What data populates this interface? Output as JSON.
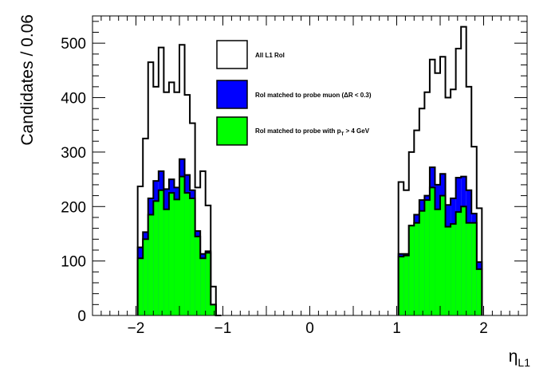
{
  "chart_data": {
    "type": "bar",
    "ylabel": "Candidates / 0.06",
    "xlabel_main": "η",
    "xlabel_sub": "L1",
    "xlim": [
      -2.5,
      2.5
    ],
    "ylim": [
      0,
      550
    ],
    "x_ticks": [
      -2,
      -1,
      0,
      1,
      2
    ],
    "x_tick_labels": [
      "−2",
      "−1",
      "0",
      "1",
      "2"
    ],
    "y_ticks": [
      0,
      100,
      200,
      300,
      400,
      500
    ],
    "y_tick_labels": [
      "0",
      "100",
      "200",
      "300",
      "400",
      "500"
    ],
    "bin_width": 0.06,
    "grid": false,
    "legend_position": "top-center",
    "colors": {
      "all": "#ffffff",
      "probe_muon": "#0000ff",
      "pt4": "#00ff00",
      "line": "#000000"
    },
    "legend": [
      {
        "key": "all",
        "label": "All L1 RoI"
      },
      {
        "key": "probe_muon",
        "label": "RoI matched to probe muon (ΔR < 0.3)"
      },
      {
        "key": "pt4",
        "label_main": "RoI matched to probe with p",
        "label_sub": "T",
        "label_tail": " > 4 GeV"
      }
    ],
    "series": [
      {
        "key": "all",
        "name": "All L1 RoI",
        "left_x": [
          -1.98,
          -1.92,
          -1.86,
          -1.8,
          -1.74,
          -1.68,
          -1.62,
          -1.56,
          -1.5,
          -1.44,
          -1.38,
          -1.32,
          -1.26,
          -1.2,
          -1.14,
          -1.08
        ],
        "left_values": [
          237,
          325,
          465,
          420,
          492,
          410,
          428,
          410,
          497,
          405,
          353,
          235,
          265,
          202,
          53,
          0
        ],
        "right_x": [
          1.02,
          1.08,
          1.14,
          1.2,
          1.26,
          1.32,
          1.38,
          1.44,
          1.5,
          1.56,
          1.62,
          1.68,
          1.74,
          1.8,
          1.86,
          1.92
        ],
        "right_values": [
          245,
          230,
          300,
          340,
          380,
          410,
          470,
          445,
          475,
          400,
          415,
          490,
          530,
          420,
          310,
          197
        ]
      },
      {
        "key": "probe_muon",
        "name": "RoI matched to probe muon (ΔR < 0.3)",
        "left_x": [
          -1.98,
          -1.92,
          -1.86,
          -1.8,
          -1.74,
          -1.68,
          -1.62,
          -1.56,
          -1.5,
          -1.44,
          -1.38,
          -1.32,
          -1.26,
          -1.2,
          -1.14,
          -1.08
        ],
        "left_values": [
          125,
          153,
          215,
          247,
          265,
          232,
          250,
          235,
          287,
          258,
          230,
          155,
          113,
          118,
          20,
          0
        ],
        "right_x": [
          1.02,
          1.08,
          1.14,
          1.2,
          1.26,
          1.32,
          1.38,
          1.44,
          1.5,
          1.56,
          1.62,
          1.68,
          1.74,
          1.8,
          1.86,
          1.92
        ],
        "right_values": [
          113,
          113,
          165,
          185,
          212,
          220,
          272,
          240,
          260,
          203,
          215,
          253,
          255,
          230,
          187,
          98
        ]
      },
      {
        "key": "pt4",
        "name": "RoI matched to probe with pT > 4 GeV",
        "left_x": [
          -1.98,
          -1.92,
          -1.86,
          -1.8,
          -1.74,
          -1.68,
          -1.62,
          -1.56,
          -1.5,
          -1.44,
          -1.38,
          -1.32,
          -1.26,
          -1.2,
          -1.14,
          -1.08
        ],
        "left_values": [
          105,
          140,
          185,
          210,
          230,
          195,
          225,
          213,
          255,
          225,
          215,
          145,
          105,
          115,
          20,
          0
        ],
        "right_x": [
          1.02,
          1.08,
          1.14,
          1.2,
          1.26,
          1.32,
          1.38,
          1.44,
          1.5,
          1.56,
          1.62,
          1.68,
          1.74,
          1.8,
          1.86,
          1.92
        ],
        "right_values": [
          108,
          110,
          165,
          170,
          192,
          212,
          235,
          195,
          220,
          163,
          168,
          190,
          200,
          170,
          170,
          85
        ]
      }
    ]
  }
}
